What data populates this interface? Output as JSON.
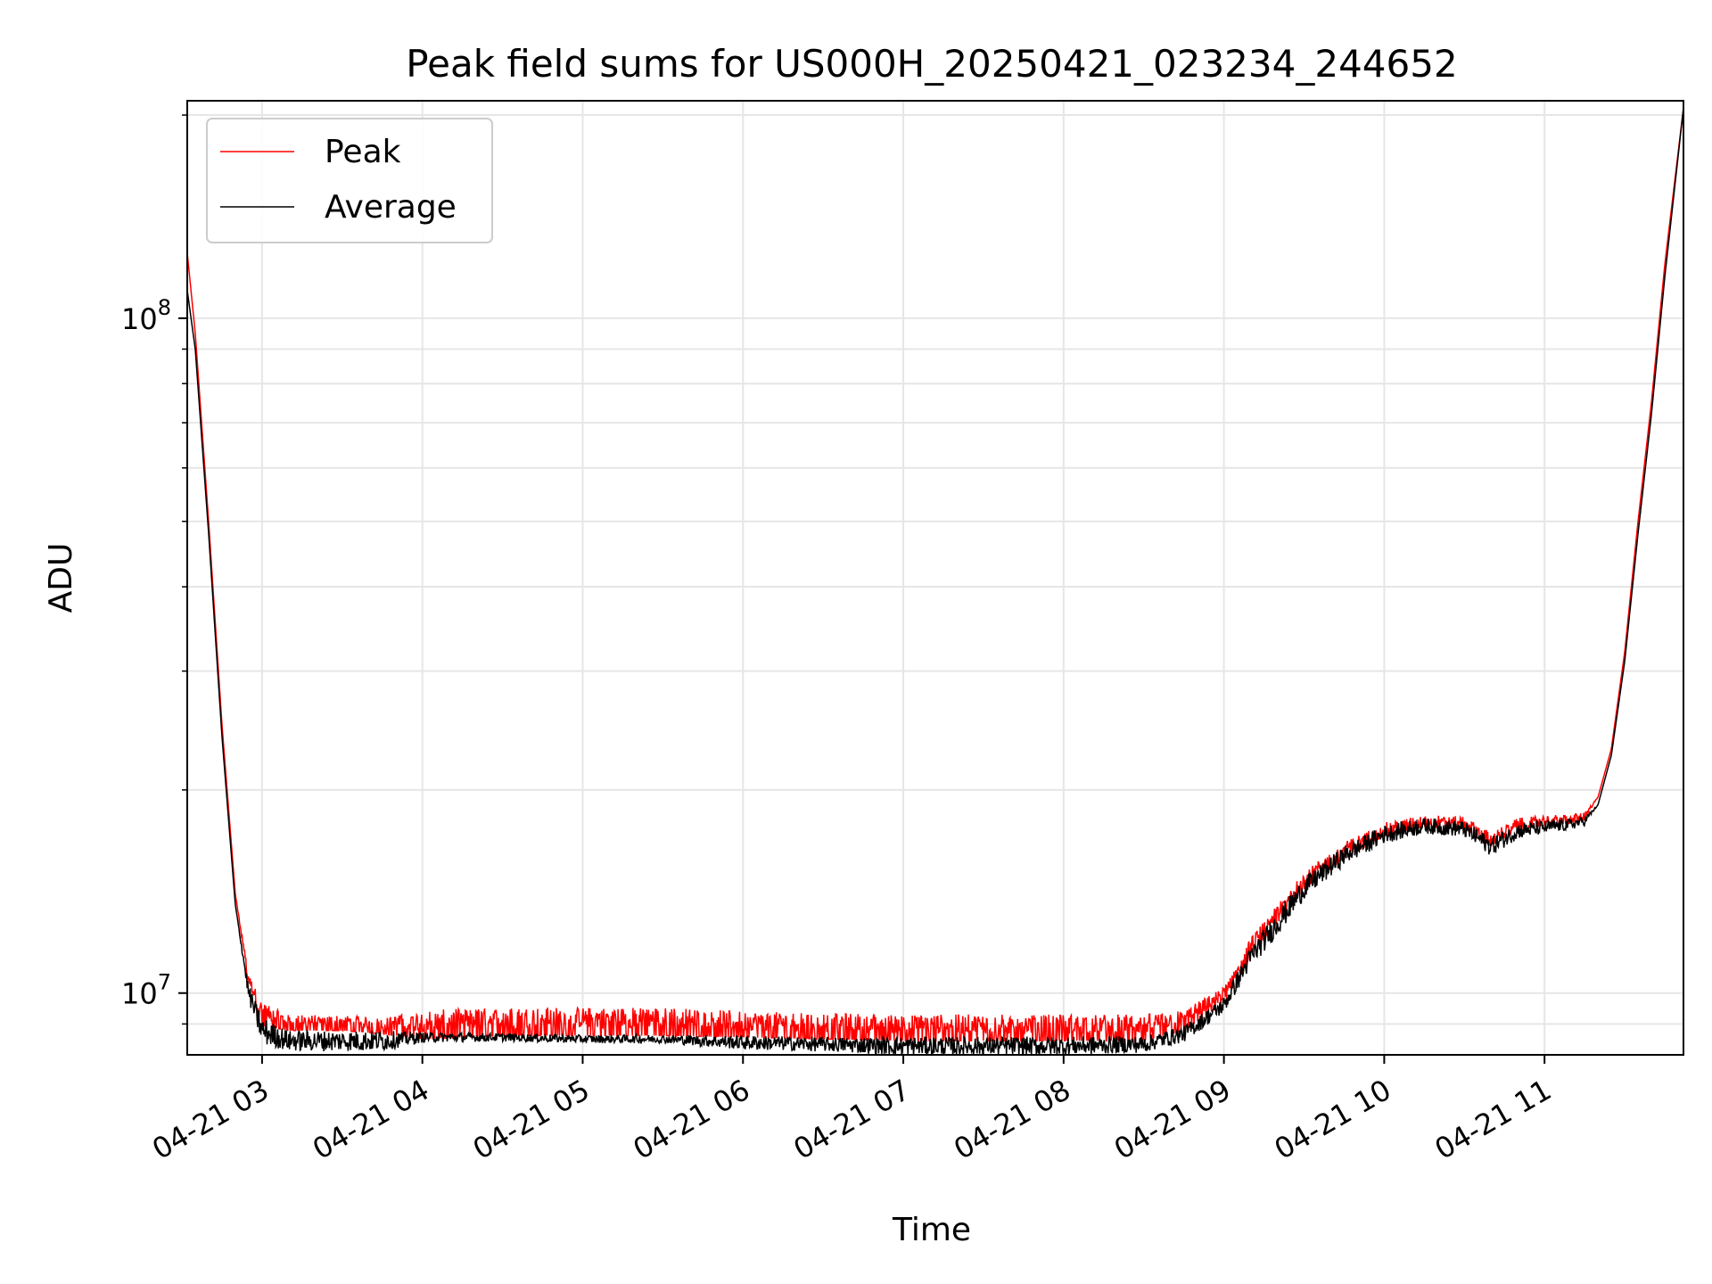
{
  "chart_data": {
    "type": "line",
    "title": "Peak field sums for US000H_20250421_023234_244652",
    "xlabel": "Time",
    "ylabel": "ADU",
    "yscale": "log",
    "ylim": [
      8100000,
      210000000
    ],
    "xlim": [
      "2025-04-21T02:32",
      "2025-04-21T11:52"
    ],
    "x_tick_labels": [
      "04-21 03",
      "04-21 04",
      "04-21 05",
      "04-21 06",
      "04-21 07",
      "04-21 08",
      "04-21 09",
      "04-21 10",
      "04-21 11"
    ],
    "y_tick_labels": [
      {
        "value": 10000000,
        "base": "10",
        "exp": "7"
      },
      {
        "value": 100000000,
        "base": "10",
        "exp": "8"
      }
    ],
    "grid": true,
    "legend_position": "top-left",
    "colors": {
      "Peak": "#ff0000",
      "Average": "#000000"
    },
    "series": [
      {
        "name": "Peak",
        "x": [
          "2025-04-21T02:32",
          "2025-04-21T02:35",
          "2025-04-21T02:40",
          "2025-04-21T02:45",
          "2025-04-21T02:50",
          "2025-04-21T02:55",
          "2025-04-21T03:00",
          "2025-04-21T03:10",
          "2025-04-21T03:30",
          "2025-04-21T03:45",
          "2025-04-21T04:00",
          "2025-04-21T04:30",
          "2025-04-21T05:00",
          "2025-04-21T05:30",
          "2025-04-21T06:00",
          "2025-04-21T06:30",
          "2025-04-21T07:00",
          "2025-04-21T07:30",
          "2025-04-21T08:00",
          "2025-04-21T08:30",
          "2025-04-21T08:45",
          "2025-04-21T09:00",
          "2025-04-21T09:10",
          "2025-04-21T09:20",
          "2025-04-21T09:30",
          "2025-04-21T09:45",
          "2025-04-21T10:00",
          "2025-04-21T10:15",
          "2025-04-21T10:30",
          "2025-04-21T10:40",
          "2025-04-21T10:50",
          "2025-04-21T11:00",
          "2025-04-21T11:10",
          "2025-04-21T11:15",
          "2025-04-21T11:20",
          "2025-04-21T11:25",
          "2025-04-21T11:30",
          "2025-04-21T11:35",
          "2025-04-21T11:40",
          "2025-04-21T11:45",
          "2025-04-21T11:52"
        ],
        "values": [
          125000000,
          95000000,
          50000000,
          25000000,
          14000000,
          10500000,
          9400000,
          9100000,
          9100000,
          9000000,
          9100000,
          9200000,
          9200000,
          9200000,
          9100000,
          9050000,
          9000000,
          9000000,
          9000000,
          9000000,
          9200000,
          10000000,
          11800000,
          13200000,
          14800000,
          16400000,
          17600000,
          18100000,
          18000000,
          17000000,
          17900000,
          18100000,
          18200000,
          18400000,
          19500000,
          23000000,
          32000000,
          50000000,
          75000000,
          120000000,
          205000000
        ],
        "band": [
          0,
          0,
          0,
          0,
          0,
          600000,
          900000,
          600000,
          600000,
          600000,
          1100000,
          1100000,
          1100000,
          1100000,
          1000000,
          1000000,
          1000000,
          1000000,
          1000000,
          1000000,
          800000,
          700000,
          900000,
          1000000,
          1100000,
          1100000,
          1000000,
          900000,
          900000,
          1000000,
          900000,
          800000,
          700000,
          600000,
          0,
          0,
          0,
          0,
          0,
          0,
          0
        ]
      },
      {
        "name": "Average",
        "x": [
          "2025-04-21T02:32",
          "2025-04-21T02:35",
          "2025-04-21T02:40",
          "2025-04-21T02:45",
          "2025-04-21T02:50",
          "2025-04-21T02:55",
          "2025-04-21T03:00",
          "2025-04-21T03:10",
          "2025-04-21T03:30",
          "2025-04-21T03:45",
          "2025-04-21T04:00",
          "2025-04-21T04:30",
          "2025-04-21T05:00",
          "2025-04-21T05:30",
          "2025-04-21T06:00",
          "2025-04-21T06:30",
          "2025-04-21T07:00",
          "2025-04-21T07:30",
          "2025-04-21T08:00",
          "2025-04-21T08:30",
          "2025-04-21T08:45",
          "2025-04-21T09:00",
          "2025-04-21T09:10",
          "2025-04-21T09:20",
          "2025-04-21T09:30",
          "2025-04-21T09:45",
          "2025-04-21T10:00",
          "2025-04-21T10:15",
          "2025-04-21T10:30",
          "2025-04-21T10:40",
          "2025-04-21T10:50",
          "2025-04-21T11:00",
          "2025-04-21T11:10",
          "2025-04-21T11:15",
          "2025-04-21T11:20",
          "2025-04-21T11:25",
          "2025-04-21T11:30",
          "2025-04-21T11:35",
          "2025-04-21T11:40",
          "2025-04-21T11:45",
          "2025-04-21T11:52"
        ],
        "values": [
          110000000,
          90000000,
          48000000,
          24000000,
          13500000,
          10000000,
          8800000,
          8500000,
          8500000,
          8500000,
          8600000,
          8600000,
          8550000,
          8550000,
          8450000,
          8400000,
          8350000,
          8350000,
          8350000,
          8400000,
          8700000,
          9600000,
          11300000,
          12700000,
          14300000,
          16000000,
          17200000,
          17700000,
          17500000,
          16500000,
          17400000,
          17600000,
          17800000,
          18000000,
          19000000,
          22500000,
          31000000,
          48000000,
          72000000,
          115000000,
          205000000
        ],
        "band": [
          0,
          0,
          0,
          0,
          0,
          500000,
          700000,
          500000,
          500000,
          500000,
          250000,
          200000,
          200000,
          200000,
          350000,
          350000,
          450000,
          450000,
          450000,
          400000,
          400000,
          450000,
          700000,
          900000,
          900000,
          900000,
          900000,
          800000,
          800000,
          900000,
          800000,
          700000,
          600000,
          500000,
          0,
          0,
          0,
          0,
          0,
          0,
          0
        ]
      }
    ]
  }
}
